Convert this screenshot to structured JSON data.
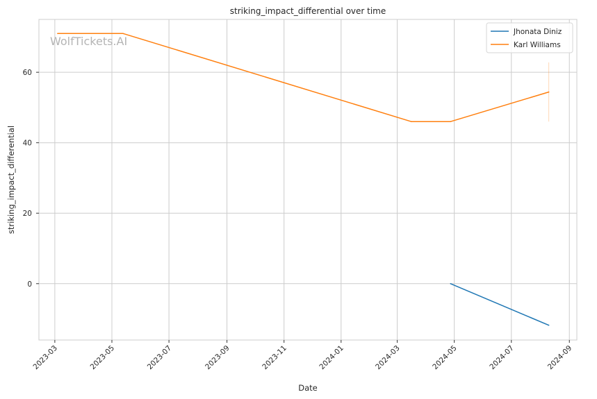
{
  "chart_data": {
    "type": "line",
    "title": "striking_impact_differential over time",
    "xlabel": "Date",
    "ylabel": "striking_impact_differential",
    "watermark": "WolfTickets.AI",
    "x_range": [
      "2023-02-12",
      "2024-09-09"
    ],
    "ylim": [
      -16,
      75
    ],
    "grid": true,
    "legend_position": "upper-right",
    "x_ticks": [
      {
        "date": "2023-03-01",
        "label": "2023-03"
      },
      {
        "date": "2023-05-01",
        "label": "2023-05"
      },
      {
        "date": "2023-07-01",
        "label": "2023-07"
      },
      {
        "date": "2023-09-01",
        "label": "2023-09"
      },
      {
        "date": "2023-11-01",
        "label": "2023-11"
      },
      {
        "date": "2024-01-01",
        "label": "2024-01"
      },
      {
        "date": "2024-03-01",
        "label": "2024-03"
      },
      {
        "date": "2024-05-01",
        "label": "2024-05"
      },
      {
        "date": "2024-07-01",
        "label": "2024-07"
      },
      {
        "date": "2024-09-01",
        "label": "2024-09"
      }
    ],
    "y_ticks": [
      0,
      20,
      40,
      60
    ],
    "series": [
      {
        "name": "Jhonata Diniz",
        "color": "#1f77b4",
        "points": [
          {
            "x": "2024-04-27",
            "y": 0
          },
          {
            "x": "2024-08-10",
            "y": -11.8
          }
        ]
      },
      {
        "name": "Karl Williams",
        "color": "#ff7f0e",
        "points": [
          {
            "x": "2023-03-04",
            "y": 71
          },
          {
            "x": "2023-05-13",
            "y": 71
          },
          {
            "x": "2024-03-16",
            "y": 46
          },
          {
            "x": "2024-04-27",
            "y": 46
          },
          {
            "x": "2024-08-10",
            "y": 54.4
          }
        ],
        "error_bars": [
          {
            "x": "2024-08-10",
            "low": 46,
            "high": 62.8
          }
        ]
      }
    ]
  }
}
